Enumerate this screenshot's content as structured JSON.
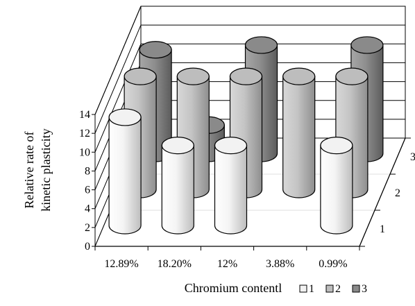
{
  "chart_data": {
    "type": "bar",
    "subtype": "3d-cylinder",
    "title": "",
    "xlabel": "Chromium contentl",
    "ylabel_lines": [
      "Relative rate of",
      "kinetic plasticity"
    ],
    "zlabel": "",
    "categories": [
      "12.89%",
      "18.20%",
      "12%",
      "3.88%",
      "0.99%"
    ],
    "y_ticks": [
      "0",
      "2",
      "4",
      "6",
      "8",
      "10",
      "12",
      "14"
    ],
    "ylim": [
      0,
      14
    ],
    "depth_ticks": [
      "1",
      "2",
      "3"
    ],
    "legend_position": "bottom-right",
    "grid": true,
    "series": [
      {
        "name": "1",
        "color": "#f2f2f2",
        "values": [
          11.5,
          8.5,
          8.5,
          0,
          8.5
        ]
      },
      {
        "name": "2",
        "color": "#bdbdbd",
        "values": [
          12.0,
          12.0,
          12.0,
          12.0,
          12.0
        ]
      },
      {
        "name": "3",
        "color": "#8a8a8a",
        "values": [
          11.0,
          3.0,
          11.5,
          0,
          11.5
        ]
      }
    ]
  }
}
